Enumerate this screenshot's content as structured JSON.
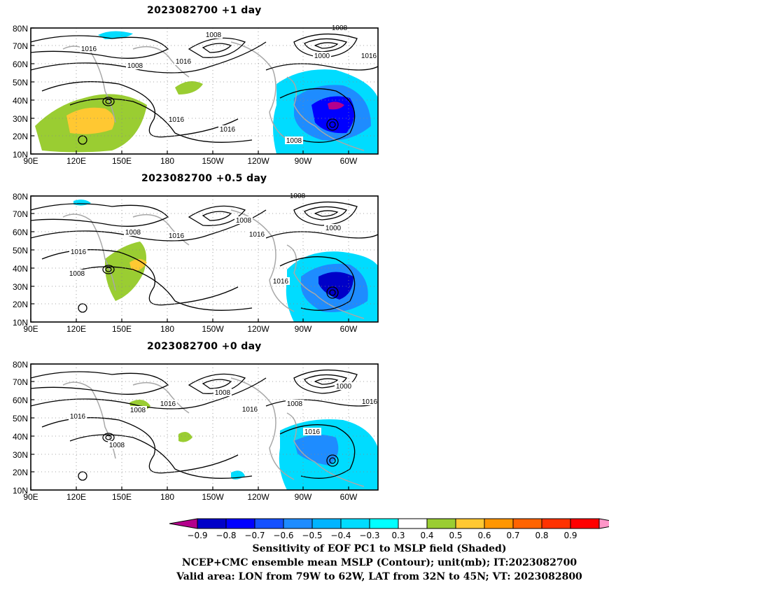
{
  "panels": [
    {
      "title": "2023082700  +1 day",
      "lat_ticks": [
        "80N",
        "70N",
        "60N",
        "50N",
        "40N",
        "30N",
        "20N",
        "10N"
      ],
      "lon_ticks": [
        "90E",
        "120E",
        "150E",
        "180",
        "150W",
        "120W",
        "90W",
        "60W"
      ],
      "contour_labels": [
        "1008",
        "1016",
        "1008",
        "1016",
        "1016",
        "1016",
        "1000",
        "1008",
        "1016",
        "1008"
      ]
    },
    {
      "title": "2023082700  +0.5 day",
      "lat_ticks": [
        "80N",
        "70N",
        "60N",
        "50N",
        "40N",
        "30N",
        "20N",
        "10N"
      ],
      "lon_ticks": [
        "90E",
        "120E",
        "150E",
        "180",
        "150W",
        "120W",
        "90W",
        "60W"
      ],
      "contour_labels": [
        "1008",
        "1016",
        "1008",
        "1016",
        "1008",
        "1016",
        "1000",
        "1016",
        "1008"
      ]
    },
    {
      "title": "2023082700  +0 day",
      "lat_ticks": [
        "80N",
        "70N",
        "60N",
        "50N",
        "40N",
        "30N",
        "20N",
        "10N"
      ],
      "lon_ticks": [
        "90E",
        "120E",
        "150E",
        "180",
        "150W",
        "120W",
        "90W",
        "60W"
      ],
      "contour_labels": [
        "1016",
        "1008",
        "1008",
        "1016",
        "1016",
        "1008",
        "1000",
        "1016",
        "1016",
        "1008"
      ]
    }
  ],
  "colorbar": {
    "labels": [
      "-0.9",
      "-0.8",
      "-0.7",
      "-0.6",
      "-0.5",
      "-0.4",
      "-0.3",
      "0.3",
      "0.4",
      "0.5",
      "0.6",
      "0.7",
      "0.8",
      "0.9"
    ],
    "colors": [
      "#b4008c",
      "#0000c8",
      "#0000ff",
      "#1450ff",
      "#1e8cff",
      "#00b4ff",
      "#00dcff",
      "#00ffff",
      "#ffffff",
      "#9acd32",
      "#ffc832",
      "#ff9600",
      "#ff6400",
      "#ff3200",
      "#ff0000",
      "#ff96c8"
    ]
  },
  "caption": {
    "line1": "Sensitivity of EOF PC1 to MSLP field (Shaded)",
    "line2": "NCEP+CMC ensemble mean MSLP (Contour); unit(mb); IT:2023082700",
    "line3": "Valid area: LON from 79W to 62W, LAT from 32N to 45N; VT: 2023082800"
  }
}
